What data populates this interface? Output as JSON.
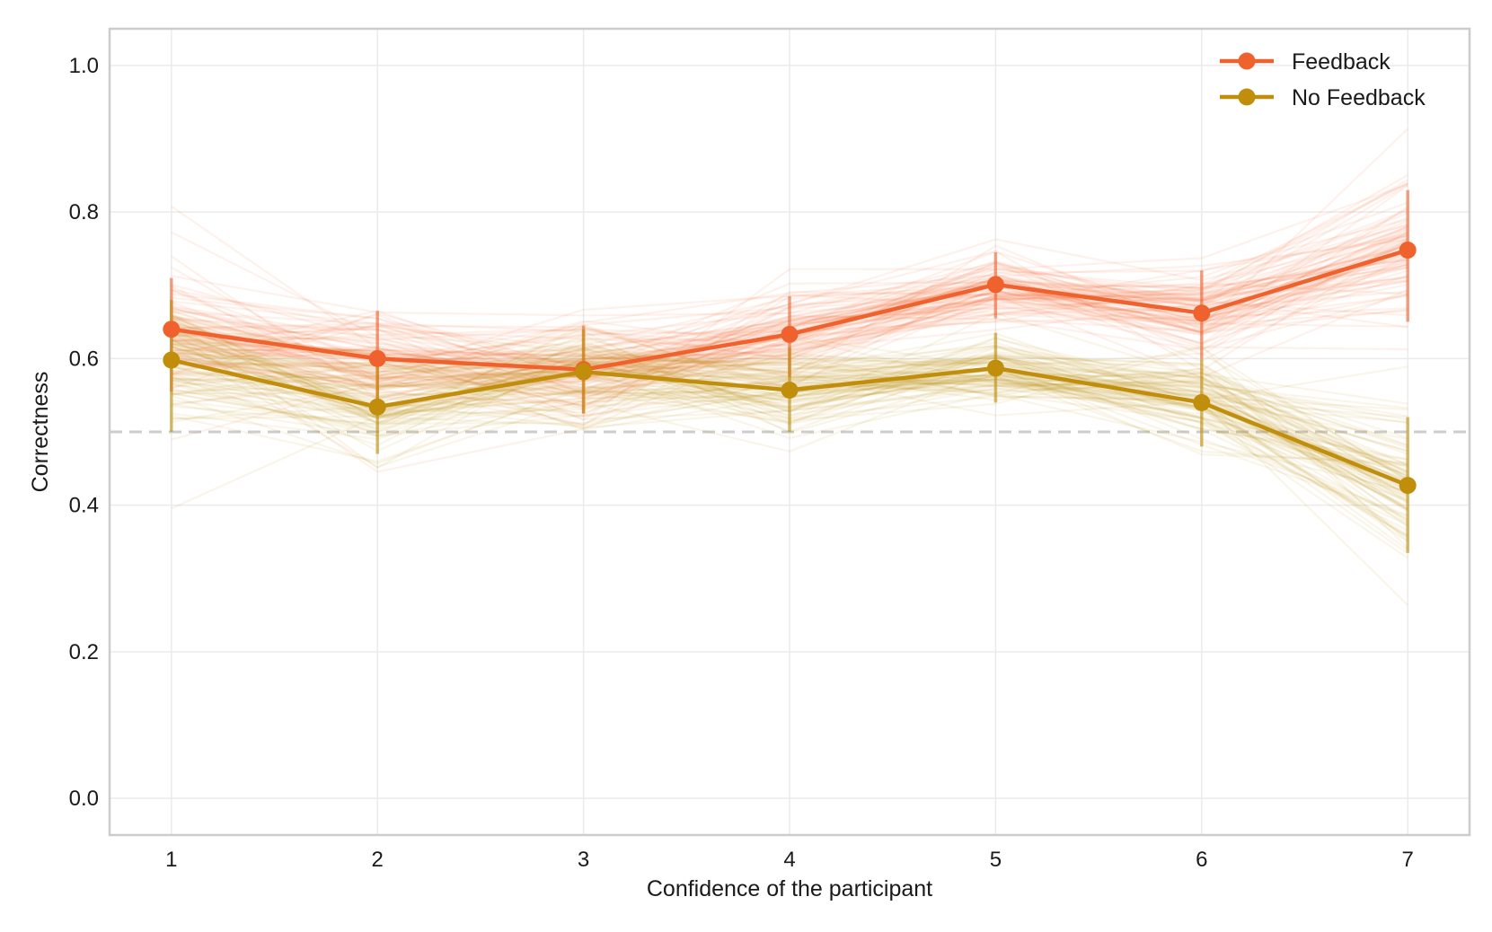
{
  "chart_data": {
    "type": "line",
    "title": "",
    "xlabel": "Confidence of the participant",
    "ylabel": "Correctness",
    "x": [
      1,
      2,
      3,
      4,
      5,
      6,
      7
    ],
    "xlim": [
      0.7,
      7.3
    ],
    "ylim": [
      -0.05,
      1.05
    ],
    "yticks": [
      0.0,
      0.2,
      0.4,
      0.6,
      0.8,
      1.0
    ],
    "ytick_labels": [
      "0.0",
      "0.2",
      "0.4",
      "0.6",
      "0.8",
      "1.0"
    ],
    "xtick_labels": [
      "1",
      "2",
      "3",
      "4",
      "5",
      "6",
      "7"
    ],
    "grid": true,
    "legend_position": "top-right",
    "reference_line": {
      "y": 0.5,
      "style": "dashed",
      "color": "#cccccc"
    },
    "series": [
      {
        "name": "Feedback",
        "color": "#f0622d",
        "values": [
          0.64,
          0.6,
          0.585,
          0.633,
          0.701,
          0.662,
          0.748
        ],
        "err_low": [
          0.555,
          0.535,
          0.525,
          0.575,
          0.655,
          0.6,
          0.65
        ],
        "err_high": [
          0.71,
          0.665,
          0.645,
          0.685,
          0.745,
          0.72,
          0.83
        ]
      },
      {
        "name": "No Feedback",
        "color": "#c08e0a",
        "values": [
          0.598,
          0.534,
          0.582,
          0.557,
          0.587,
          0.54,
          0.427
        ],
        "err_low": [
          0.5,
          0.47,
          0.525,
          0.5,
          0.54,
          0.48,
          0.335
        ],
        "err_high": [
          0.68,
          0.6,
          0.64,
          0.615,
          0.635,
          0.6,
          0.52
        ]
      }
    ],
    "bootstrap_note": "faint resampled lines around each series"
  }
}
